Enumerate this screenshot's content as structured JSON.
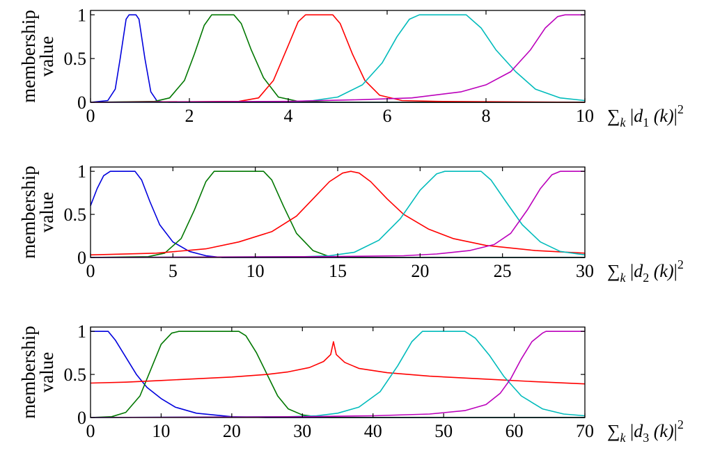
{
  "chart_data": [
    {
      "type": "line",
      "ylabel_lines": [
        "membership",
        "value"
      ],
      "xlabel": {
        "sum": "∑",
        "sum_sub": "k",
        "bar_open": "|",
        "d": "d",
        "d_sub": "1",
        "paren": "(k)",
        "bar_close": "|",
        "power": "2"
      },
      "xlim": [
        0,
        10
      ],
      "ylim": [
        0,
        1.05
      ],
      "xticks": [
        0,
        2,
        4,
        6,
        8,
        10
      ],
      "xtick_labels": [
        "0",
        "2",
        "4",
        "6",
        "8",
        "10"
      ],
      "yticks": [
        0,
        0.5,
        1
      ],
      "ytick_labels": [
        "0",
        "0.5",
        "1"
      ],
      "series": [
        {
          "color": "#0000dd",
          "points": [
            [
              0,
              0
            ],
            [
              0.35,
              0.02
            ],
            [
              0.5,
              0.15
            ],
            [
              0.6,
              0.5
            ],
            [
              0.72,
              0.95
            ],
            [
              0.78,
              1
            ],
            [
              0.92,
              1
            ],
            [
              0.98,
              0.95
            ],
            [
              1.1,
              0.5
            ],
            [
              1.22,
              0.12
            ],
            [
              1.35,
              0.01
            ],
            [
              1.6,
              0
            ],
            [
              10,
              0
            ]
          ]
        },
        {
          "color": "#007700",
          "points": [
            [
              0,
              0
            ],
            [
              1.3,
              0.01
            ],
            [
              1.6,
              0.05
            ],
            [
              1.9,
              0.25
            ],
            [
              2.1,
              0.55
            ],
            [
              2.3,
              0.88
            ],
            [
              2.45,
              1
            ],
            [
              2.9,
              1
            ],
            [
              3.05,
              0.9
            ],
            [
              3.25,
              0.6
            ],
            [
              3.5,
              0.28
            ],
            [
              3.8,
              0.06
            ],
            [
              4.2,
              0.01
            ],
            [
              5,
              0
            ],
            [
              10,
              0
            ]
          ]
        },
        {
          "color": "#ff0000",
          "points": [
            [
              0,
              0
            ],
            [
              3,
              0.01
            ],
            [
              3.4,
              0.05
            ],
            [
              3.7,
              0.25
            ],
            [
              4,
              0.65
            ],
            [
              4.2,
              0.92
            ],
            [
              4.35,
              1
            ],
            [
              4.9,
              1
            ],
            [
              5.05,
              0.9
            ],
            [
              5.3,
              0.55
            ],
            [
              5.55,
              0.25
            ],
            [
              5.85,
              0.08
            ],
            [
              6.3,
              0.02
            ],
            [
              7,
              0.01
            ],
            [
              10,
              0
            ]
          ]
        },
        {
          "color": "#00bbbb",
          "points": [
            [
              0,
              0
            ],
            [
              3.8,
              0
            ],
            [
              4.5,
              0.02
            ],
            [
              5,
              0.06
            ],
            [
              5.5,
              0.2
            ],
            [
              5.9,
              0.45
            ],
            [
              6.2,
              0.75
            ],
            [
              6.45,
              0.95
            ],
            [
              6.65,
              1
            ],
            [
              7.6,
              1
            ],
            [
              7.9,
              0.85
            ],
            [
              8.2,
              0.6
            ],
            [
              8.6,
              0.35
            ],
            [
              9,
              0.15
            ],
            [
              9.5,
              0.05
            ],
            [
              10,
              0.02
            ]
          ]
        },
        {
          "color": "#bb00bb",
          "points": [
            [
              0,
              0
            ],
            [
              4,
              0.01
            ],
            [
              5.5,
              0.03
            ],
            [
              6.5,
              0.05
            ],
            [
              7.5,
              0.12
            ],
            [
              8,
              0.2
            ],
            [
              8.5,
              0.35
            ],
            [
              8.9,
              0.6
            ],
            [
              9.2,
              0.85
            ],
            [
              9.45,
              0.98
            ],
            [
              9.6,
              1
            ],
            [
              10,
              1
            ]
          ]
        }
      ]
    },
    {
      "type": "line",
      "ylabel_lines": [
        "membership",
        "value"
      ],
      "xlabel": {
        "sum": "∑",
        "sum_sub": "k",
        "bar_open": "|",
        "d": "d",
        "d_sub": "2",
        "paren": "(k)",
        "bar_close": "|",
        "power": "2"
      },
      "xlim": [
        0,
        30
      ],
      "ylim": [
        0,
        1.05
      ],
      "xticks": [
        0,
        5,
        10,
        15,
        20,
        25,
        30
      ],
      "xtick_labels": [
        "0",
        "5",
        "10",
        "15",
        "20",
        "25",
        "30"
      ],
      "yticks": [
        0,
        0.5,
        1
      ],
      "ytick_labels": [
        "0",
        "0.5",
        "1"
      ],
      "series": [
        {
          "color": "#0000dd",
          "points": [
            [
              0,
              0.6
            ],
            [
              0.4,
              0.8
            ],
            [
              0.8,
              0.95
            ],
            [
              1.2,
              1
            ],
            [
              2.7,
              1
            ],
            [
              3.1,
              0.9
            ],
            [
              3.6,
              0.65
            ],
            [
              4.2,
              0.38
            ],
            [
              5,
              0.18
            ],
            [
              6,
              0.07
            ],
            [
              7,
              0.02
            ],
            [
              8,
              0
            ],
            [
              30,
              0
            ]
          ]
        },
        {
          "color": "#007700",
          "points": [
            [
              0,
              0
            ],
            [
              3.5,
              0.01
            ],
            [
              4.5,
              0.05
            ],
            [
              5.5,
              0.22
            ],
            [
              6.3,
              0.55
            ],
            [
              7,
              0.88
            ],
            [
              7.5,
              1
            ],
            [
              10.5,
              1
            ],
            [
              11,
              0.9
            ],
            [
              11.7,
              0.6
            ],
            [
              12.5,
              0.28
            ],
            [
              13.5,
              0.08
            ],
            [
              14.5,
              0.01
            ],
            [
              16,
              0
            ],
            [
              30,
              0
            ]
          ]
        },
        {
          "color": "#ff0000",
          "points": [
            [
              0,
              0.03
            ],
            [
              4,
              0.05
            ],
            [
              7,
              0.1
            ],
            [
              9,
              0.18
            ],
            [
              11,
              0.3
            ],
            [
              12.5,
              0.48
            ],
            [
              13.5,
              0.68
            ],
            [
              14.5,
              0.88
            ],
            [
              15.3,
              0.98
            ],
            [
              15.8,
              1
            ],
            [
              16.3,
              0.98
            ],
            [
              17,
              0.88
            ],
            [
              18,
              0.68
            ],
            [
              19,
              0.5
            ],
            [
              20.5,
              0.33
            ],
            [
              22,
              0.22
            ],
            [
              24,
              0.14
            ],
            [
              27,
              0.08
            ],
            [
              30,
              0.05
            ]
          ]
        },
        {
          "color": "#00bbbb",
          "points": [
            [
              0,
              0
            ],
            [
              13,
              0.01
            ],
            [
              14.5,
              0.02
            ],
            [
              16,
              0.06
            ],
            [
              17.5,
              0.2
            ],
            [
              18.8,
              0.45
            ],
            [
              20,
              0.78
            ],
            [
              21,
              0.97
            ],
            [
              21.5,
              1
            ],
            [
              23.7,
              1
            ],
            [
              24.3,
              0.9
            ],
            [
              25.2,
              0.65
            ],
            [
              26.2,
              0.38
            ],
            [
              27.3,
              0.18
            ],
            [
              28.5,
              0.07
            ],
            [
              30,
              0.03
            ]
          ]
        },
        {
          "color": "#bb00bb",
          "points": [
            [
              0,
              0
            ],
            [
              14,
              0.01
            ],
            [
              19,
              0.02
            ],
            [
              21,
              0.04
            ],
            [
              23,
              0.08
            ],
            [
              24.5,
              0.15
            ],
            [
              25.5,
              0.28
            ],
            [
              26.5,
              0.55
            ],
            [
              27.3,
              0.8
            ],
            [
              28,
              0.96
            ],
            [
              28.5,
              1
            ],
            [
              30,
              1
            ]
          ]
        }
      ]
    },
    {
      "type": "line",
      "ylabel_lines": [
        "membership",
        "value"
      ],
      "xlabel": {
        "sum": "∑",
        "sum_sub": "k",
        "bar_open": "|",
        "d": "d",
        "d_sub": "3",
        "paren": "(k)",
        "bar_close": "|",
        "power": "2"
      },
      "xlim": [
        0,
        70
      ],
      "ylim": [
        0,
        1.05
      ],
      "xticks": [
        0,
        10,
        20,
        30,
        40,
        50,
        60,
        70
      ],
      "xtick_labels": [
        "0",
        "10",
        "20",
        "30",
        "40",
        "50",
        "60",
        "70"
      ],
      "yticks": [
        0,
        0.5,
        1
      ],
      "ytick_labels": [
        "0",
        "0.5",
        "1"
      ],
      "series": [
        {
          "color": "#0000dd",
          "points": [
            [
              0,
              1
            ],
            [
              2.5,
              1
            ],
            [
              3.5,
              0.9
            ],
            [
              5,
              0.7
            ],
            [
              6.5,
              0.5
            ],
            [
              8,
              0.35
            ],
            [
              10,
              0.22
            ],
            [
              12,
              0.12
            ],
            [
              15,
              0.05
            ],
            [
              20,
              0.01
            ],
            [
              25,
              0
            ],
            [
              70,
              0
            ]
          ]
        },
        {
          "color": "#007700",
          "points": [
            [
              0,
              0
            ],
            [
              3,
              0.01
            ],
            [
              5,
              0.06
            ],
            [
              7,
              0.25
            ],
            [
              8.5,
              0.55
            ],
            [
              10,
              0.85
            ],
            [
              11.5,
              0.98
            ],
            [
              12.5,
              1
            ],
            [
              21,
              1
            ],
            [
              22,
              0.95
            ],
            [
              23.5,
              0.75
            ],
            [
              25,
              0.5
            ],
            [
              26.5,
              0.25
            ],
            [
              28,
              0.1
            ],
            [
              30,
              0.03
            ],
            [
              32,
              0.01
            ],
            [
              34,
              0
            ],
            [
              70,
              0
            ]
          ]
        },
        {
          "color": "#ff0000",
          "points": [
            [
              0,
              0.4
            ],
            [
              5,
              0.41
            ],
            [
              10,
              0.43
            ],
            [
              15,
              0.45
            ],
            [
              20,
              0.47
            ],
            [
              25,
              0.5
            ],
            [
              28,
              0.53
            ],
            [
              31,
              0.58
            ],
            [
              33,
              0.65
            ],
            [
              34,
              0.73
            ],
            [
              34.4,
              0.88
            ],
            [
              34.8,
              0.73
            ],
            [
              36,
              0.64
            ],
            [
              38,
              0.57
            ],
            [
              42,
              0.52
            ],
            [
              48,
              0.48
            ],
            [
              55,
              0.45
            ],
            [
              62,
              0.42
            ],
            [
              70,
              0.39
            ]
          ]
        },
        {
          "color": "#00bbbb",
          "points": [
            [
              0,
              0
            ],
            [
              28,
              0.01
            ],
            [
              32,
              0.02
            ],
            [
              35,
              0.05
            ],
            [
              38,
              0.12
            ],
            [
              41,
              0.3
            ],
            [
              43.5,
              0.6
            ],
            [
              45.5,
              0.88
            ],
            [
              47,
              1
            ],
            [
              53,
              1
            ],
            [
              54.5,
              0.92
            ],
            [
              56.5,
              0.72
            ],
            [
              58.5,
              0.48
            ],
            [
              61,
              0.25
            ],
            [
              64,
              0.1
            ],
            [
              67,
              0.04
            ],
            [
              70,
              0.02
            ]
          ]
        },
        {
          "color": "#bb00bb",
          "points": [
            [
              0,
              0
            ],
            [
              30,
              0.01
            ],
            [
              40,
              0.02
            ],
            [
              48,
              0.04
            ],
            [
              53,
              0.08
            ],
            [
              56,
              0.15
            ],
            [
              58,
              0.28
            ],
            [
              59.5,
              0.45
            ],
            [
              61,
              0.68
            ],
            [
              62.5,
              0.88
            ],
            [
              64,
              0.98
            ],
            [
              64.5,
              1
            ],
            [
              70,
              1
            ]
          ]
        }
      ]
    }
  ]
}
